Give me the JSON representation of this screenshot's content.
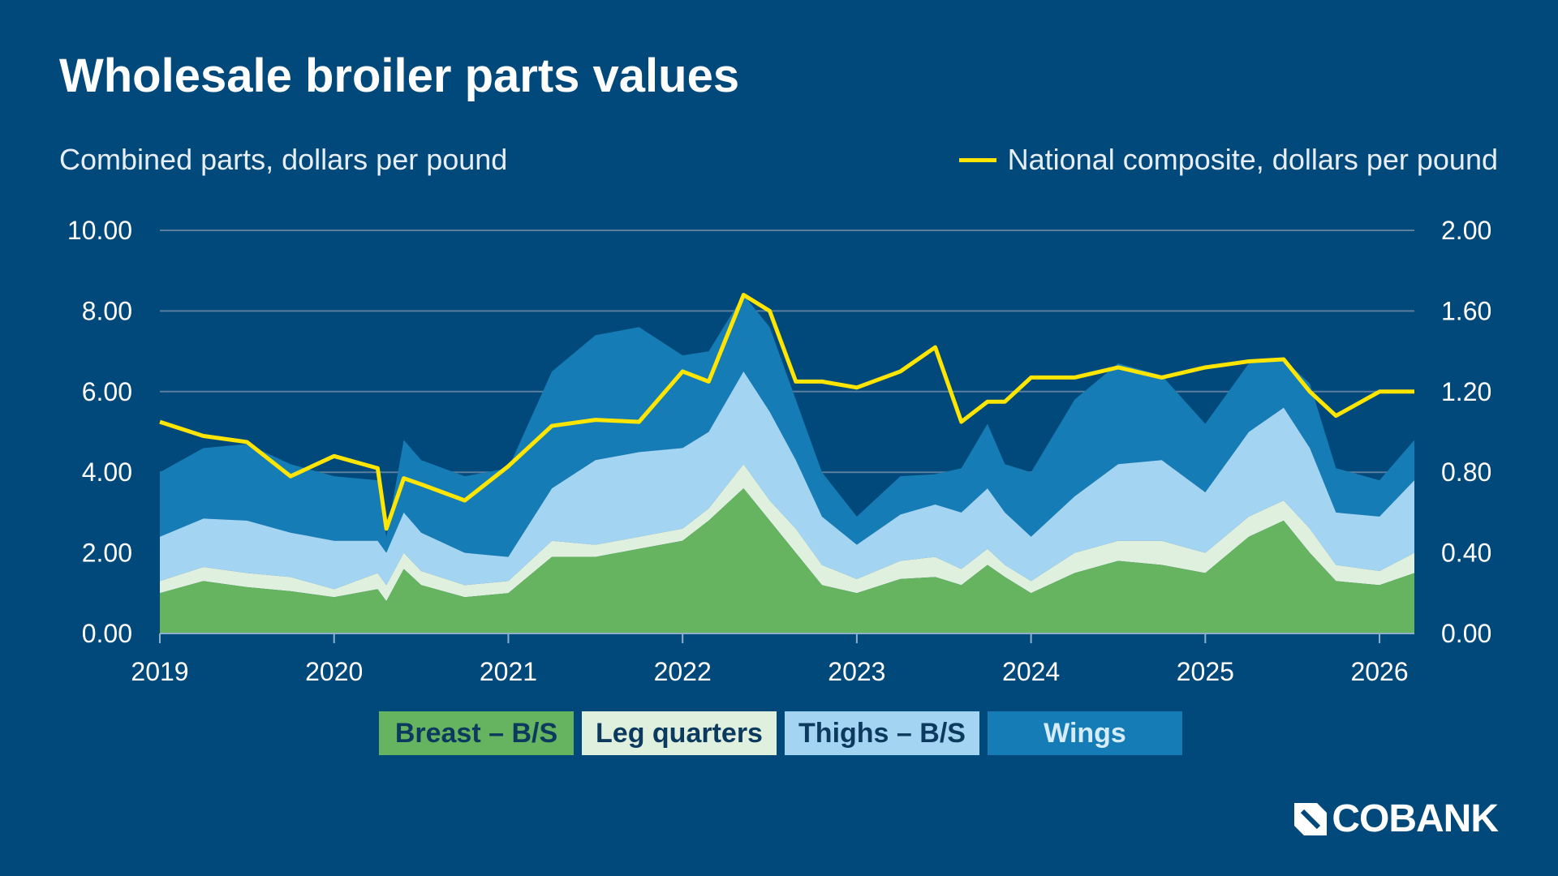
{
  "title": "Wholesale broiler parts values",
  "left_axis_title": "Combined parts, dollars per pound",
  "right_axis_title": "National composite, dollars per pound",
  "logo": "COBANK",
  "colors": {
    "background": "#01497a",
    "breast": "#66b360",
    "leg": "#e0f0de",
    "thighs": "#a3d5f3",
    "wings": "#167cb6",
    "composite": "#ffe500"
  },
  "chart_data": {
    "type": "area",
    "stacked": true,
    "xlim": [
      2019,
      2026.2
    ],
    "ylim": [
      0,
      10
    ],
    "y2lim": [
      0,
      2
    ],
    "grid": true,
    "x_ticks": [
      "2019",
      "2020",
      "2021",
      "2022",
      "2023",
      "2024",
      "2025",
      "2026"
    ],
    "y_ticks": [
      "0.00",
      "2.00",
      "4.00",
      "6.00",
      "8.00",
      "10.00"
    ],
    "y2_ticks": [
      "0.00",
      "0.40",
      "0.80",
      "1.20",
      "1.60",
      "2.00"
    ],
    "legend_position": "bottom",
    "x": [
      2019.0,
      2019.25,
      2019.5,
      2019.75,
      2020.0,
      2020.25,
      2020.3,
      2020.4,
      2020.5,
      2020.75,
      2021.0,
      2021.25,
      2021.5,
      2021.75,
      2022.0,
      2022.15,
      2022.35,
      2022.5,
      2022.65,
      2022.8,
      2023.0,
      2023.25,
      2023.45,
      2023.6,
      2023.75,
      2023.85,
      2024.0,
      2024.25,
      2024.5,
      2024.75,
      2025.0,
      2025.25,
      2025.45,
      2025.6,
      2025.75,
      2026.0,
      2026.2
    ],
    "series": [
      {
        "name": "Breast – B/S",
        "values": [
          1.0,
          1.3,
          1.15,
          1.05,
          0.9,
          1.1,
          0.8,
          1.6,
          1.2,
          0.9,
          1.0,
          1.9,
          1.9,
          2.1,
          2.3,
          2.8,
          3.6,
          2.8,
          2.0,
          1.2,
          1.0,
          1.35,
          1.4,
          1.2,
          1.7,
          1.4,
          1.0,
          1.5,
          1.8,
          1.7,
          1.5,
          2.4,
          2.8,
          2.0,
          1.3,
          1.2,
          1.5
        ]
      },
      {
        "name": "Leg quarters",
        "values": [
          0.3,
          0.35,
          0.35,
          0.35,
          0.2,
          0.4,
          0.4,
          0.4,
          0.35,
          0.3,
          0.3,
          0.4,
          0.3,
          0.3,
          0.3,
          0.3,
          0.6,
          0.5,
          0.6,
          0.5,
          0.35,
          0.45,
          0.5,
          0.4,
          0.4,
          0.3,
          0.3,
          0.5,
          0.5,
          0.6,
          0.5,
          0.5,
          0.5,
          0.6,
          0.4,
          0.35,
          0.5
        ]
      },
      {
        "name": "Thighs – B/S",
        "values": [
          1.1,
          1.2,
          1.3,
          1.1,
          1.2,
          0.8,
          0.8,
          1.0,
          0.95,
          0.8,
          0.6,
          1.3,
          2.1,
          2.1,
          2.0,
          1.9,
          2.3,
          2.2,
          1.7,
          1.2,
          0.85,
          1.15,
          1.3,
          1.4,
          1.5,
          1.3,
          1.1,
          1.4,
          1.9,
          2.0,
          1.5,
          2.1,
          2.3,
          2.0,
          1.3,
          1.35,
          1.8
        ]
      },
      {
        "name": "Wings",
        "values": [
          1.6,
          1.75,
          1.9,
          1.7,
          1.6,
          1.5,
          0.4,
          1.8,
          1.8,
          1.9,
          2.2,
          2.9,
          3.1,
          3.1,
          2.3,
          2.0,
          1.9,
          2.1,
          1.5,
          1.1,
          0.7,
          0.95,
          0.75,
          1.1,
          1.6,
          1.2,
          1.6,
          2.4,
          2.5,
          2.1,
          1.7,
          1.7,
          1.2,
          1.6,
          1.1,
          0.9,
          1.0
        ]
      }
    ],
    "line": {
      "name": "National composite, dollars per pound",
      "axis": "right",
      "values": [
        1.05,
        0.98,
        0.95,
        0.78,
        0.88,
        0.82,
        0.52,
        0.77,
        0.74,
        0.66,
        0.83,
        1.03,
        1.06,
        1.05,
        1.3,
        1.25,
        1.68,
        1.6,
        1.25,
        1.25,
        1.22,
        1.3,
        1.42,
        1.05,
        1.15,
        1.15,
        1.27,
        1.27,
        1.32,
        1.27,
        1.32,
        1.35,
        1.36,
        1.2,
        1.08,
        1.2,
        1.2
      ]
    }
  }
}
